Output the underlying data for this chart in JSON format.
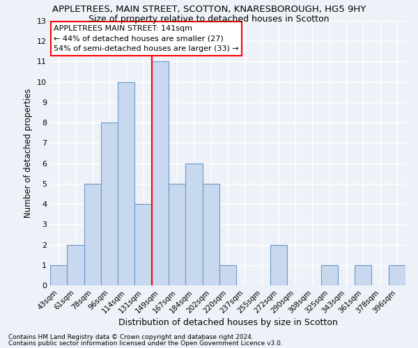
{
  "title": "APPLETREES, MAIN STREET, SCOTTON, KNARESBOROUGH, HG5 9HY",
  "subtitle": "Size of property relative to detached houses in Scotton",
  "xlabel": "Distribution of detached houses by size in Scotton",
  "ylabel": "Number of detached properties",
  "categories": [
    "43sqm",
    "61sqm",
    "78sqm",
    "96sqm",
    "114sqm",
    "131sqm",
    "149sqm",
    "167sqm",
    "184sqm",
    "202sqm",
    "220sqm",
    "237sqm",
    "255sqm",
    "272sqm",
    "290sqm",
    "308sqm",
    "325sqm",
    "343sqm",
    "361sqm",
    "378sqm",
    "396sqm"
  ],
  "values": [
    1,
    2,
    5,
    8,
    10,
    4,
    11,
    5,
    6,
    5,
    1,
    0,
    0,
    2,
    0,
    0,
    1,
    0,
    1,
    0,
    1
  ],
  "bar_color": "#c8d8ee",
  "bar_edge_color": "#6699cc",
  "vline_x_index": 5,
  "vline_color": "red",
  "annotation_box_text": "APPLETREES MAIN STREET: 141sqm\n← 44% of detached houses are smaller (27)\n54% of semi-detached houses are larger (33) →",
  "ylim": [
    0,
    13
  ],
  "yticks": [
    0,
    1,
    2,
    3,
    4,
    5,
    6,
    7,
    8,
    9,
    10,
    11,
    12,
    13
  ],
  "footnote1": "Contains HM Land Registry data © Crown copyright and database right 2024.",
  "footnote2": "Contains public sector information licensed under the Open Government Licence v3.0.",
  "background_color": "#eef2f8",
  "grid_color": "#ffffff",
  "title_fontsize": 9.5,
  "subtitle_fontsize": 9,
  "annotation_fontsize": 8
}
